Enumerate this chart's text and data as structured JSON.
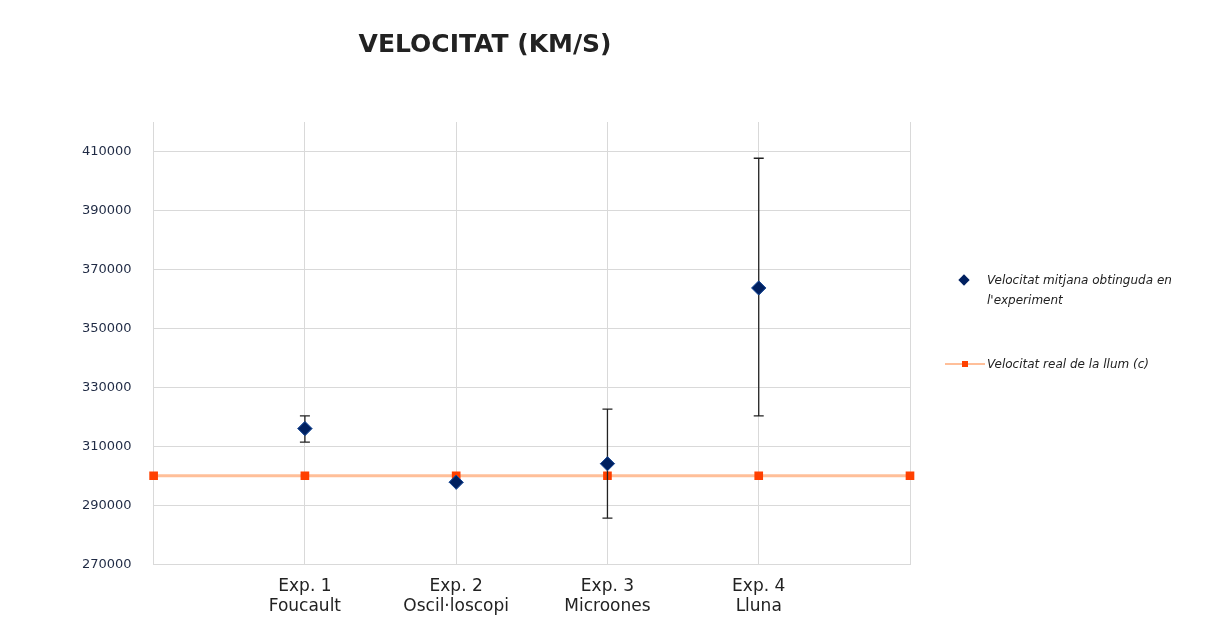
{
  "chart_data": {
    "type": "scatter",
    "title": "VELOCITAT (KM/S)",
    "categories": [
      null,
      "Exp. 1\nFoucault",
      "Exp. 2\nOscil·loscopi",
      "Exp. 3\nMicroones",
      "Exp. 4\nLluna",
      null
    ],
    "series": [
      {
        "name": "Velocitat mitjana obtinguda en l'experiment",
        "type": "scatter",
        "marker": "diamond",
        "color": "#002060",
        "values": [
          null,
          316000,
          297800,
          304100,
          363700,
          null
        ],
        "errors": [
          null,
          [
            311400,
            320300
          ],
          null,
          [
            285600,
            322600
          ],
          [
            320300,
            407700
          ],
          null
        ]
      },
      {
        "name": "Velocitat real de la llum (c)",
        "type": "line",
        "marker": "square",
        "color": "#ffbf99",
        "values": [
          300000,
          300000,
          300000,
          300000,
          300000,
          300000
        ]
      }
    ],
    "ylim": [
      270000,
      420000
    ],
    "yticks": [
      270000,
      290000,
      310000,
      330000,
      350000,
      370000,
      390000,
      410000
    ],
    "grid": true,
    "legend": "right"
  }
}
